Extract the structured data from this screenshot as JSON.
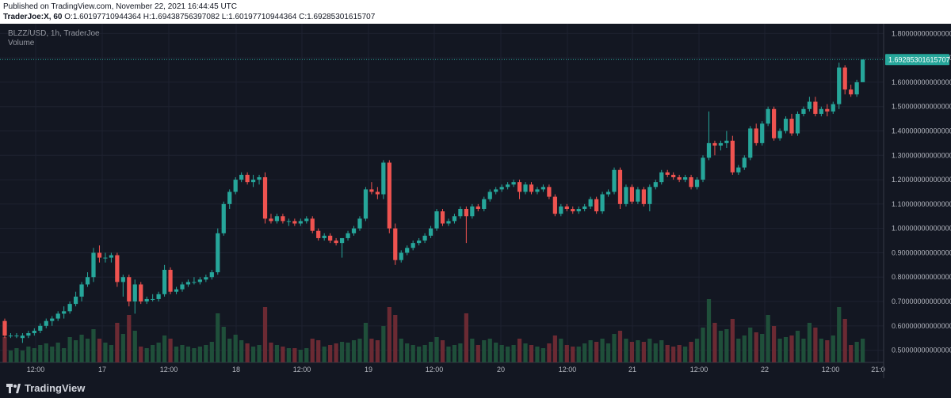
{
  "header": {
    "published": "Published on TradingView.com, November 22, 2021 16:44:45 UTC",
    "ohlc_symbol": "TraderJoe:X, 60",
    "ohlc_values": "O:1.60197710944364 H:1.69438756397082 L:1.60197710944364 C:1.69285301615707"
  },
  "chart_header": {
    "symbol": "BLZZ/USD, 1h, TraderJoe",
    "volume_label": "Volume"
  },
  "footer": {
    "brand": "TradingView"
  },
  "colors": {
    "up": "#26a69a",
    "down": "#ef5350",
    "vol_up": "#1f4f3a",
    "vol_down": "#6b2a33",
    "background": "#131722",
    "grid": "#1e2230",
    "price_tag": "#26a69a"
  },
  "chart_data": {
    "type": "candlestick",
    "last_price_label": "1.69285301615707",
    "y_ticks": [
      "1.800000000000000",
      "1.700000000000000",
      "1.600000000000000",
      "1.500000000000000",
      "1.400000000000000",
      "1.300000000000000",
      "1.200000000000000",
      "1.100000000000000",
      "1.000000000000000",
      "0.900000000000000",
      "0.800000000000000",
      "0.700000000000000",
      "0.600000000000000",
      "0.500000000000000"
    ],
    "ylim": [
      0.45,
      1.84
    ],
    "x_ticks": [
      "12:00",
      "17",
      "12:00",
      "18",
      "12:00",
      "19",
      "12:00",
      "20",
      "12:00",
      "21",
      "12:00",
      "22",
      "12:00",
      "21:0"
    ],
    "candles": [
      {
        "o": 0.62,
        "h": 0.63,
        "l": 0.55,
        "c": 0.56,
        "v": 0.32
      },
      {
        "o": 0.56,
        "h": 0.57,
        "l": 0.55,
        "c": 0.56,
        "v": 0.15
      },
      {
        "o": 0.56,
        "h": 0.57,
        "l": 0.55,
        "c": 0.56,
        "v": 0.18
      },
      {
        "o": 0.55,
        "h": 0.57,
        "l": 0.53,
        "c": 0.56,
        "v": 0.15
      },
      {
        "o": 0.56,
        "h": 0.58,
        "l": 0.55,
        "c": 0.57,
        "v": 0.2
      },
      {
        "o": 0.57,
        "h": 0.59,
        "l": 0.56,
        "c": 0.58,
        "v": 0.18
      },
      {
        "o": 0.58,
        "h": 0.61,
        "l": 0.57,
        "c": 0.6,
        "v": 0.22
      },
      {
        "o": 0.6,
        "h": 0.63,
        "l": 0.59,
        "c": 0.62,
        "v": 0.24
      },
      {
        "o": 0.62,
        "h": 0.64,
        "l": 0.6,
        "c": 0.63,
        "v": 0.2
      },
      {
        "o": 0.63,
        "h": 0.66,
        "l": 0.62,
        "c": 0.65,
        "v": 0.25
      },
      {
        "o": 0.65,
        "h": 0.68,
        "l": 0.63,
        "c": 0.66,
        "v": 0.18
      },
      {
        "o": 0.66,
        "h": 0.7,
        "l": 0.65,
        "c": 0.69,
        "v": 0.32
      },
      {
        "o": 0.69,
        "h": 0.74,
        "l": 0.68,
        "c": 0.72,
        "v": 0.28
      },
      {
        "o": 0.72,
        "h": 0.78,
        "l": 0.7,
        "c": 0.77,
        "v": 0.35
      },
      {
        "o": 0.77,
        "h": 0.82,
        "l": 0.76,
        "c": 0.8,
        "v": 0.3
      },
      {
        "o": 0.8,
        "h": 0.92,
        "l": 0.78,
        "c": 0.9,
        "v": 0.42
      },
      {
        "o": 0.9,
        "h": 0.93,
        "l": 0.86,
        "c": 0.88,
        "v": 0.3
      },
      {
        "o": 0.88,
        "h": 0.9,
        "l": 0.86,
        "c": 0.88,
        "v": 0.25
      },
      {
        "o": 0.88,
        "h": 0.9,
        "l": 0.86,
        "c": 0.89,
        "v": 0.22
      },
      {
        "o": 0.89,
        "h": 0.9,
        "l": 0.76,
        "c": 0.78,
        "v": 0.5
      },
      {
        "o": 0.78,
        "h": 0.81,
        "l": 0.72,
        "c": 0.8,
        "v": 0.36
      },
      {
        "o": 0.8,
        "h": 0.81,
        "l": 0.68,
        "c": 0.7,
        "v": 0.6
      },
      {
        "o": 0.7,
        "h": 0.79,
        "l": 0.65,
        "c": 0.77,
        "v": 0.4
      },
      {
        "o": 0.77,
        "h": 0.78,
        "l": 0.69,
        "c": 0.7,
        "v": 0.2
      },
      {
        "o": 0.7,
        "h": 0.72,
        "l": 0.69,
        "c": 0.71,
        "v": 0.18
      },
      {
        "o": 0.71,
        "h": 0.73,
        "l": 0.7,
        "c": 0.71,
        "v": 0.22
      },
      {
        "o": 0.71,
        "h": 0.74,
        "l": 0.7,
        "c": 0.73,
        "v": 0.25
      },
      {
        "o": 0.73,
        "h": 0.85,
        "l": 0.72,
        "c": 0.83,
        "v": 0.34
      },
      {
        "o": 0.83,
        "h": 0.84,
        "l": 0.73,
        "c": 0.74,
        "v": 0.3
      },
      {
        "o": 0.74,
        "h": 0.76,
        "l": 0.73,
        "c": 0.75,
        "v": 0.2
      },
      {
        "o": 0.75,
        "h": 0.78,
        "l": 0.74,
        "c": 0.77,
        "v": 0.22
      },
      {
        "o": 0.77,
        "h": 0.79,
        "l": 0.76,
        "c": 0.78,
        "v": 0.2
      },
      {
        "o": 0.78,
        "h": 0.8,
        "l": 0.77,
        "c": 0.78,
        "v": 0.18
      },
      {
        "o": 0.78,
        "h": 0.8,
        "l": 0.77,
        "c": 0.79,
        "v": 0.2
      },
      {
        "o": 0.79,
        "h": 0.81,
        "l": 0.78,
        "c": 0.8,
        "v": 0.22
      },
      {
        "o": 0.8,
        "h": 0.83,
        "l": 0.79,
        "c": 0.82,
        "v": 0.26
      },
      {
        "o": 0.82,
        "h": 1.0,
        "l": 0.81,
        "c": 0.98,
        "v": 0.62
      },
      {
        "o": 0.98,
        "h": 1.11,
        "l": 0.97,
        "c": 1.1,
        "v": 0.45
      },
      {
        "o": 1.1,
        "h": 1.16,
        "l": 1.08,
        "c": 1.15,
        "v": 0.3
      },
      {
        "o": 1.15,
        "h": 1.21,
        "l": 1.14,
        "c": 1.2,
        "v": 0.35
      },
      {
        "o": 1.2,
        "h": 1.23,
        "l": 1.19,
        "c": 1.22,
        "v": 0.28
      },
      {
        "o": 1.22,
        "h": 1.23,
        "l": 1.18,
        "c": 1.19,
        "v": 0.24
      },
      {
        "o": 1.19,
        "h": 1.22,
        "l": 1.17,
        "c": 1.2,
        "v": 0.2
      },
      {
        "o": 1.2,
        "h": 1.22,
        "l": 1.18,
        "c": 1.21,
        "v": 0.22
      },
      {
        "o": 1.21,
        "h": 1.23,
        "l": 1.02,
        "c": 1.04,
        "v": 0.7
      },
      {
        "o": 1.04,
        "h": 1.06,
        "l": 1.02,
        "c": 1.03,
        "v": 0.25
      },
      {
        "o": 1.03,
        "h": 1.06,
        "l": 1.02,
        "c": 1.05,
        "v": 0.22
      },
      {
        "o": 1.05,
        "h": 1.06,
        "l": 1.02,
        "c": 1.03,
        "v": 0.2
      },
      {
        "o": 1.03,
        "h": 1.04,
        "l": 1.01,
        "c": 1.03,
        "v": 0.18
      },
      {
        "o": 1.03,
        "h": 1.04,
        "l": 1.01,
        "c": 1.02,
        "v": 0.18
      },
      {
        "o": 1.02,
        "h": 1.04,
        "l": 1.01,
        "c": 1.03,
        "v": 0.16
      },
      {
        "o": 1.03,
        "h": 1.05,
        "l": 1.02,
        "c": 1.04,
        "v": 0.18
      },
      {
        "o": 1.04,
        "h": 1.05,
        "l": 0.98,
        "c": 0.99,
        "v": 0.3
      },
      {
        "o": 0.99,
        "h": 1.0,
        "l": 0.95,
        "c": 0.96,
        "v": 0.28
      },
      {
        "o": 0.96,
        "h": 0.98,
        "l": 0.95,
        "c": 0.97,
        "v": 0.2
      },
      {
        "o": 0.97,
        "h": 0.98,
        "l": 0.94,
        "c": 0.95,
        "v": 0.22
      },
      {
        "o": 0.95,
        "h": 0.96,
        "l": 0.93,
        "c": 0.94,
        "v": 0.24
      },
      {
        "o": 0.94,
        "h": 0.96,
        "l": 0.88,
        "c": 0.96,
        "v": 0.26
      },
      {
        "o": 0.96,
        "h": 0.99,
        "l": 0.95,
        "c": 0.98,
        "v": 0.25
      },
      {
        "o": 0.98,
        "h": 1.01,
        "l": 0.97,
        "c": 1.0,
        "v": 0.28
      },
      {
        "o": 1.0,
        "h": 1.05,
        "l": 0.99,
        "c": 1.04,
        "v": 0.3
      },
      {
        "o": 1.04,
        "h": 1.17,
        "l": 1.03,
        "c": 1.16,
        "v": 0.5
      },
      {
        "o": 1.16,
        "h": 1.19,
        "l": 1.14,
        "c": 1.15,
        "v": 0.3
      },
      {
        "o": 1.15,
        "h": 1.17,
        "l": 1.12,
        "c": 1.14,
        "v": 0.28
      },
      {
        "o": 1.14,
        "h": 1.28,
        "l": 1.12,
        "c": 1.27,
        "v": 0.46
      },
      {
        "o": 1.27,
        "h": 1.28,
        "l": 0.98,
        "c": 1.0,
        "v": 0.7
      },
      {
        "o": 1.0,
        "h": 1.02,
        "l": 0.85,
        "c": 0.87,
        "v": 0.6
      },
      {
        "o": 0.87,
        "h": 0.91,
        "l": 0.86,
        "c": 0.9,
        "v": 0.3
      },
      {
        "o": 0.9,
        "h": 0.93,
        "l": 0.89,
        "c": 0.92,
        "v": 0.24
      },
      {
        "o": 0.92,
        "h": 0.95,
        "l": 0.91,
        "c": 0.94,
        "v": 0.22
      },
      {
        "o": 0.94,
        "h": 0.96,
        "l": 0.93,
        "c": 0.95,
        "v": 0.2
      },
      {
        "o": 0.95,
        "h": 0.98,
        "l": 0.94,
        "c": 0.97,
        "v": 0.22
      },
      {
        "o": 0.97,
        "h": 1.01,
        "l": 0.96,
        "c": 1.0,
        "v": 0.26
      },
      {
        "o": 1.0,
        "h": 1.08,
        "l": 0.99,
        "c": 1.07,
        "v": 0.32
      },
      {
        "o": 1.07,
        "h": 1.08,
        "l": 1.01,
        "c": 1.02,
        "v": 0.28
      },
      {
        "o": 1.02,
        "h": 1.04,
        "l": 1.01,
        "c": 1.03,
        "v": 0.2
      },
      {
        "o": 1.03,
        "h": 1.06,
        "l": 1.02,
        "c": 1.05,
        "v": 0.22
      },
      {
        "o": 1.05,
        "h": 1.09,
        "l": 1.04,
        "c": 1.08,
        "v": 0.24
      },
      {
        "o": 1.08,
        "h": 1.09,
        "l": 0.94,
        "c": 1.05,
        "v": 0.62
      },
      {
        "o": 1.05,
        "h": 1.1,
        "l": 1.04,
        "c": 1.09,
        "v": 0.3
      },
      {
        "o": 1.09,
        "h": 1.1,
        "l": 1.07,
        "c": 1.08,
        "v": 0.22
      },
      {
        "o": 1.08,
        "h": 1.13,
        "l": 1.07,
        "c": 1.12,
        "v": 0.28
      },
      {
        "o": 1.12,
        "h": 1.16,
        "l": 1.11,
        "c": 1.15,
        "v": 0.3
      },
      {
        "o": 1.15,
        "h": 1.17,
        "l": 1.14,
        "c": 1.16,
        "v": 0.25
      },
      {
        "o": 1.16,
        "h": 1.18,
        "l": 1.15,
        "c": 1.17,
        "v": 0.22
      },
      {
        "o": 1.17,
        "h": 1.19,
        "l": 1.16,
        "c": 1.18,
        "v": 0.2
      },
      {
        "o": 1.18,
        "h": 1.2,
        "l": 1.17,
        "c": 1.19,
        "v": 0.22
      },
      {
        "o": 1.19,
        "h": 1.2,
        "l": 1.12,
        "c": 1.15,
        "v": 0.3
      },
      {
        "o": 1.15,
        "h": 1.19,
        "l": 1.14,
        "c": 1.18,
        "v": 0.24
      },
      {
        "o": 1.18,
        "h": 1.19,
        "l": 1.14,
        "c": 1.15,
        "v": 0.22
      },
      {
        "o": 1.15,
        "h": 1.17,
        "l": 1.14,
        "c": 1.16,
        "v": 0.2
      },
      {
        "o": 1.16,
        "h": 1.18,
        "l": 1.15,
        "c": 1.17,
        "v": 0.18
      },
      {
        "o": 1.17,
        "h": 1.18,
        "l": 1.12,
        "c": 1.13,
        "v": 0.24
      },
      {
        "o": 1.13,
        "h": 1.14,
        "l": 1.05,
        "c": 1.06,
        "v": 0.34
      },
      {
        "o": 1.06,
        "h": 1.1,
        "l": 1.05,
        "c": 1.09,
        "v": 0.3
      },
      {
        "o": 1.09,
        "h": 1.1,
        "l": 1.07,
        "c": 1.08,
        "v": 0.22
      },
      {
        "o": 1.08,
        "h": 1.09,
        "l": 1.06,
        "c": 1.07,
        "v": 0.2
      },
      {
        "o": 1.07,
        "h": 1.09,
        "l": 1.06,
        "c": 1.08,
        "v": 0.2
      },
      {
        "o": 1.08,
        "h": 1.1,
        "l": 1.07,
        "c": 1.09,
        "v": 0.24
      },
      {
        "o": 1.09,
        "h": 1.13,
        "l": 1.08,
        "c": 1.12,
        "v": 0.28
      },
      {
        "o": 1.12,
        "h": 1.13,
        "l": 1.06,
        "c": 1.07,
        "v": 0.26
      },
      {
        "o": 1.07,
        "h": 1.15,
        "l": 1.06,
        "c": 1.14,
        "v": 0.3
      },
      {
        "o": 1.14,
        "h": 1.16,
        "l": 1.13,
        "c": 1.15,
        "v": 0.24
      },
      {
        "o": 1.15,
        "h": 1.25,
        "l": 1.14,
        "c": 1.24,
        "v": 0.36
      },
      {
        "o": 1.24,
        "h": 1.25,
        "l": 1.08,
        "c": 1.1,
        "v": 0.4
      },
      {
        "o": 1.1,
        "h": 1.18,
        "l": 1.09,
        "c": 1.17,
        "v": 0.3
      },
      {
        "o": 1.17,
        "h": 1.18,
        "l": 1.1,
        "c": 1.11,
        "v": 0.26
      },
      {
        "o": 1.11,
        "h": 1.17,
        "l": 1.1,
        "c": 1.16,
        "v": 0.28
      },
      {
        "o": 1.16,
        "h": 1.17,
        "l": 1.09,
        "c": 1.1,
        "v": 0.26
      },
      {
        "o": 1.1,
        "h": 1.18,
        "l": 1.07,
        "c": 1.17,
        "v": 0.3
      },
      {
        "o": 1.17,
        "h": 1.2,
        "l": 1.16,
        "c": 1.19,
        "v": 0.24
      },
      {
        "o": 1.19,
        "h": 1.24,
        "l": 1.18,
        "c": 1.23,
        "v": 0.28
      },
      {
        "o": 1.23,
        "h": 1.24,
        "l": 1.21,
        "c": 1.22,
        "v": 0.22
      },
      {
        "o": 1.22,
        "h": 1.23,
        "l": 1.2,
        "c": 1.21,
        "v": 0.2
      },
      {
        "o": 1.21,
        "h": 1.22,
        "l": 1.19,
        "c": 1.2,
        "v": 0.22
      },
      {
        "o": 1.2,
        "h": 1.22,
        "l": 1.19,
        "c": 1.21,
        "v": 0.2
      },
      {
        "o": 1.21,
        "h": 1.22,
        "l": 1.16,
        "c": 1.17,
        "v": 0.26
      },
      {
        "o": 1.17,
        "h": 1.21,
        "l": 1.16,
        "c": 1.2,
        "v": 0.3
      },
      {
        "o": 1.2,
        "h": 1.3,
        "l": 1.19,
        "c": 1.29,
        "v": 0.44
      },
      {
        "o": 1.29,
        "h": 1.48,
        "l": 1.28,
        "c": 1.35,
        "v": 0.8
      },
      {
        "o": 1.35,
        "h": 1.36,
        "l": 1.3,
        "c": 1.34,
        "v": 0.5
      },
      {
        "o": 1.34,
        "h": 1.36,
        "l": 1.32,
        "c": 1.35,
        "v": 0.4
      },
      {
        "o": 1.35,
        "h": 1.4,
        "l": 1.33,
        "c": 1.36,
        "v": 0.42
      },
      {
        "o": 1.36,
        "h": 1.38,
        "l": 1.22,
        "c": 1.23,
        "v": 0.55
      },
      {
        "o": 1.23,
        "h": 1.26,
        "l": 1.22,
        "c": 1.25,
        "v": 0.3
      },
      {
        "o": 1.25,
        "h": 1.3,
        "l": 1.24,
        "c": 1.29,
        "v": 0.34
      },
      {
        "o": 1.29,
        "h": 1.42,
        "l": 1.28,
        "c": 1.41,
        "v": 0.44
      },
      {
        "o": 1.41,
        "h": 1.43,
        "l": 1.34,
        "c": 1.35,
        "v": 0.38
      },
      {
        "o": 1.35,
        "h": 1.44,
        "l": 1.34,
        "c": 1.43,
        "v": 0.36
      },
      {
        "o": 1.43,
        "h": 1.5,
        "l": 1.42,
        "c": 1.49,
        "v": 0.6
      },
      {
        "o": 1.49,
        "h": 1.5,
        "l": 1.36,
        "c": 1.37,
        "v": 0.46
      },
      {
        "o": 1.37,
        "h": 1.41,
        "l": 1.36,
        "c": 1.4,
        "v": 0.3
      },
      {
        "o": 1.4,
        "h": 1.46,
        "l": 1.39,
        "c": 1.45,
        "v": 0.32
      },
      {
        "o": 1.45,
        "h": 1.47,
        "l": 1.38,
        "c": 1.39,
        "v": 0.34
      },
      {
        "o": 1.39,
        "h": 1.48,
        "l": 1.38,
        "c": 1.47,
        "v": 0.4
      },
      {
        "o": 1.47,
        "h": 1.5,
        "l": 1.46,
        "c": 1.49,
        "v": 0.3
      },
      {
        "o": 1.49,
        "h": 1.54,
        "l": 1.48,
        "c": 1.52,
        "v": 0.5
      },
      {
        "o": 1.52,
        "h": 1.54,
        "l": 1.46,
        "c": 1.47,
        "v": 0.44
      },
      {
        "o": 1.47,
        "h": 1.5,
        "l": 1.46,
        "c": 1.49,
        "v": 0.3
      },
      {
        "o": 1.49,
        "h": 1.51,
        "l": 1.46,
        "c": 1.48,
        "v": 0.28
      },
      {
        "o": 1.48,
        "h": 1.52,
        "l": 1.47,
        "c": 1.51,
        "v": 0.34
      },
      {
        "o": 1.51,
        "h": 1.68,
        "l": 1.49,
        "c": 1.66,
        "v": 0.7
      },
      {
        "o": 1.66,
        "h": 1.67,
        "l": 1.55,
        "c": 1.57,
        "v": 0.55
      },
      {
        "o": 1.57,
        "h": 1.59,
        "l": 1.54,
        "c": 1.55,
        "v": 0.22
      },
      {
        "o": 1.55,
        "h": 1.61,
        "l": 1.54,
        "c": 1.6,
        "v": 0.26
      },
      {
        "o": 1.6,
        "h": 1.694,
        "l": 1.602,
        "c": 1.693,
        "v": 0.3
      }
    ]
  }
}
